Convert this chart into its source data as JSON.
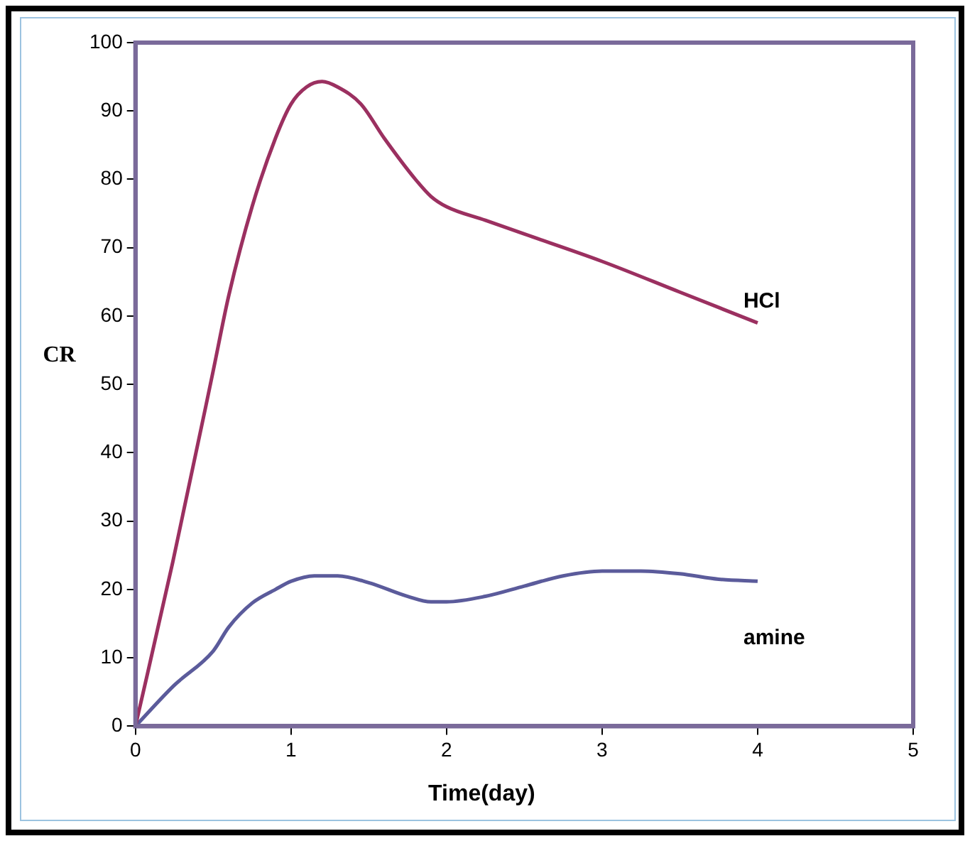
{
  "chart_data": {
    "type": "line",
    "xlabel": "Time(day)",
    "ylabel": "CR",
    "xlim": [
      0,
      5
    ],
    "xticks": [
      0,
      1,
      2,
      3,
      4,
      5
    ],
    "ylim": [
      0,
      100
    ],
    "yticks": [
      0,
      10,
      20,
      30,
      40,
      50,
      60,
      70,
      80,
      90,
      100
    ],
    "grid": false,
    "legend": false,
    "marker": "none",
    "line_style": "solid",
    "series": [
      {
        "name": "HCl",
        "color": "#9b3060",
        "x": [
          0,
          0.24,
          0.5,
          0.6,
          0.75,
          0.9,
          1,
          1.1,
          1.2,
          1.3,
          1.45,
          1.6,
          1.8,
          1.9,
          2,
          2.25,
          2.5,
          3,
          3.5,
          4
        ],
        "values": [
          0,
          24,
          52,
          63,
          76,
          86,
          91,
          93.5,
          94.3,
          93.5,
          91,
          86,
          80,
          77.5,
          76,
          74,
          72,
          68,
          63.5,
          59
        ]
      },
      {
        "name": "amine",
        "color": "#5b5b9b",
        "x": [
          0,
          0.25,
          0.5,
          0.6,
          0.75,
          0.9,
          1,
          1.15,
          1.3,
          1.5,
          1.75,
          1.9,
          2,
          2.25,
          2.5,
          2.75,
          3,
          3.25,
          3.5,
          3.75,
          4
        ],
        "values": [
          0,
          6,
          11,
          14.5,
          18,
          20,
          21.2,
          22,
          22,
          21,
          19,
          18.2,
          18.2,
          19,
          20.5,
          22,
          22.7,
          22.7,
          22.3,
          21.5,
          21.2
        ]
      }
    ]
  }
}
